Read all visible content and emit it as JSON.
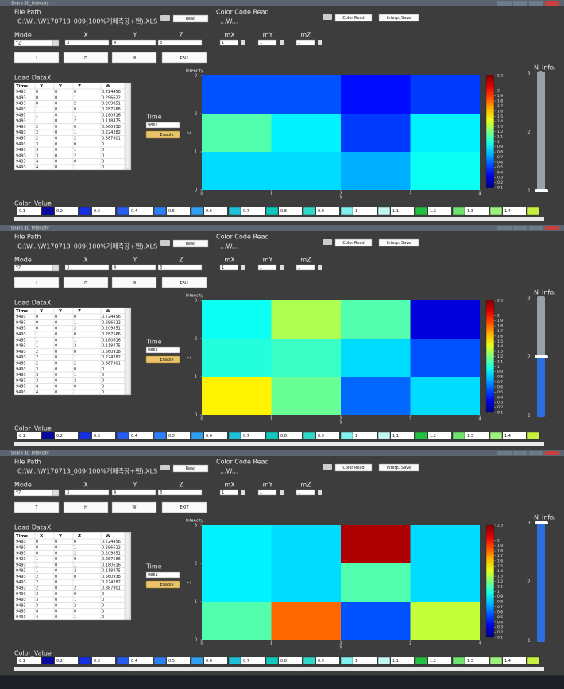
{
  "form": {
    "file_path_label": "File Path",
    "file_path": "C:\\W...\\W170713_009(100%개폐측창+팬).XLS",
    "read_button": "Read",
    "color_code_label": "Color Code Read",
    "color_code_path": "...W...",
    "color_read_button": "Color Read",
    "interp_save_button": "Interp. Save",
    "mode_label": "Mode",
    "mode": "YZ",
    "dims": [
      {
        "label": "X",
        "value": 3
      },
      {
        "label": "Y",
        "value": 4
      },
      {
        "label": "Z",
        "value": 3
      }
    ],
    "steps": [
      {
        "label": "mX",
        "value": 1
      },
      {
        "label": "mY",
        "value": 1
      },
      {
        "label": "mZ",
        "value": 1
      }
    ],
    "buttons": [
      "T",
      "H",
      "W",
      "EXIT"
    ],
    "load_label": "Load DataX",
    "table": {
      "columns": [
        "Time",
        "X",
        "Y",
        "Z",
        "W"
      ],
      "rows": [
        [
          9493,
          0,
          0,
          0,
          0.724456
        ],
        [
          9493,
          0,
          0,
          1,
          0.296622
        ],
        [
          9493,
          0,
          0,
          2,
          0.209851
        ],
        [
          9493,
          1,
          0,
          0,
          0.287566
        ],
        [
          9493,
          1,
          0,
          1,
          0.180616
        ],
        [
          9493,
          1,
          0,
          2,
          0.118475
        ],
        [
          9493,
          2,
          0,
          0,
          0.560938
        ],
        [
          9493,
          2,
          0,
          1,
          0.224282
        ],
        [
          9493,
          2,
          0,
          2,
          0.387801
        ],
        [
          9493,
          3,
          0,
          0,
          0
        ],
        [
          9493,
          3,
          0,
          1,
          0
        ],
        [
          9493,
          3,
          0,
          2,
          0
        ],
        [
          9493,
          4,
          0,
          0,
          0
        ],
        [
          9493,
          4,
          0,
          1,
          0
        ]
      ]
    },
    "time_label": "Time",
    "time_value": 9861,
    "enable_button": "Enable",
    "color_value_label": "Color_Value",
    "color_values": [
      {
        "value": 0.1,
        "color": "#0a0aa0"
      },
      {
        "value": 0.2,
        "color": "#1530e0"
      },
      {
        "value": 0.3,
        "color": "#2a5cf0"
      },
      {
        "value": 0.4,
        "color": "#2f7ff5"
      },
      {
        "value": 0.5,
        "color": "#30a0f0"
      },
      {
        "value": 0.6,
        "color": "#20c0d8"
      },
      {
        "value": 0.7,
        "color": "#10c8c0"
      },
      {
        "value": 0.8,
        "color": "#30d8c8"
      },
      {
        "value": 0.9,
        "color": "#80f0f0"
      },
      {
        "value": 1,
        "color": "#c0f8f0"
      },
      {
        "value": 1.1,
        "color": "#20c040"
      },
      {
        "value": 1.2,
        "color": "#70e070"
      },
      {
        "value": 1.3,
        "color": "#a0f080"
      },
      {
        "value": 1.4,
        "color": "#c8f040"
      }
    ],
    "n_info_label": "N_Info."
  },
  "windows": [
    {
      "title": "Sharp 3D_Intencity",
      "chart_data": {
        "type": "heatmap",
        "title": "Intencity",
        "x_label": "Y",
        "y_label": "Z",
        "xlim": [
          0,
          4
        ],
        "xticks": [
          0,
          1,
          2,
          3,
          4
        ],
        "ylim": [
          0,
          3
        ],
        "yticks": [
          0,
          1,
          2,
          3
        ],
        "values": [
          [
            0.85,
            0.85,
            0.75,
            0.95
          ],
          [
            1.1,
            0.9,
            0.5,
            0.9
          ],
          [
            0.55,
            0.55,
            0.4,
            0.5
          ]
        ],
        "clim": [
          0.1,
          2.3
        ],
        "cticks": [
          0.1,
          0.2,
          0.3,
          0.4,
          0.5,
          0.6,
          0.7,
          0.8,
          0.9,
          1,
          1.1,
          1.2,
          1.3,
          1.4,
          1.5,
          1.6,
          1.7,
          1.8,
          1.9,
          2,
          2.3
        ],
        "n_info": 1,
        "n_info_lim": [
          1,
          3
        ],
        "n_info_ticks": [
          1,
          2,
          3
        ]
      }
    },
    {
      "title": "Sharp 3D_Intencity",
      "chart_data": {
        "type": "heatmap",
        "title": "Intencity",
        "x_label": "Y",
        "y_label": "Z",
        "xlim": [
          0,
          4
        ],
        "xticks": [
          0,
          1,
          2,
          3,
          4
        ],
        "ylim": [
          0,
          3
        ],
        "yticks": [
          0,
          1,
          2,
          3
        ],
        "values": [
          [
            1.5,
            1.15,
            0.6,
            0.85
          ],
          [
            1.0,
            1.05,
            0.85,
            0.55
          ],
          [
            0.95,
            1.3,
            1.1,
            0.3
          ]
        ],
        "clim": [
          0.1,
          2.3
        ],
        "cticks": [
          0.1,
          0.2,
          0.3,
          0.4,
          0.5,
          0.6,
          0.7,
          0.8,
          0.9,
          1,
          1.1,
          1.2,
          1.3,
          1.4,
          1.5,
          1.6,
          1.7,
          1.8,
          1.9,
          2,
          2.3
        ],
        "n_info": 2,
        "n_info_lim": [
          1,
          3
        ],
        "n_info_ticks": [
          1,
          2,
          3
        ]
      }
    },
    {
      "title": "Sharp 3D_Intencity",
      "chart_data": {
        "type": "heatmap",
        "title": "Intencity",
        "x_label": "Y",
        "y_label": "Z",
        "xlim": [
          0,
          4
        ],
        "xticks": [
          0,
          1,
          2,
          3,
          4
        ],
        "ylim": [
          0,
          3
        ],
        "yticks": [
          0,
          1,
          2,
          3
        ],
        "values": [
          [
            1.1,
            1.8,
            0.55,
            1.35
          ],
          [
            0.9,
            0.85,
            1.1,
            0.85
          ],
          [
            0.9,
            0.85,
            2.2,
            0.85
          ]
        ],
        "clim": [
          0.1,
          2.3
        ],
        "cticks": [
          0.1,
          0.2,
          0.3,
          0.4,
          0.5,
          0.6,
          0.7,
          0.8,
          0.9,
          1,
          1.1,
          1.2,
          1.3,
          1.4,
          1.5,
          1.6,
          1.7,
          1.8,
          1.9,
          2,
          2.3
        ],
        "n_info": 3,
        "n_info_lim": [
          1,
          3
        ],
        "n_info_ticks": [
          1,
          2,
          3
        ]
      }
    }
  ]
}
